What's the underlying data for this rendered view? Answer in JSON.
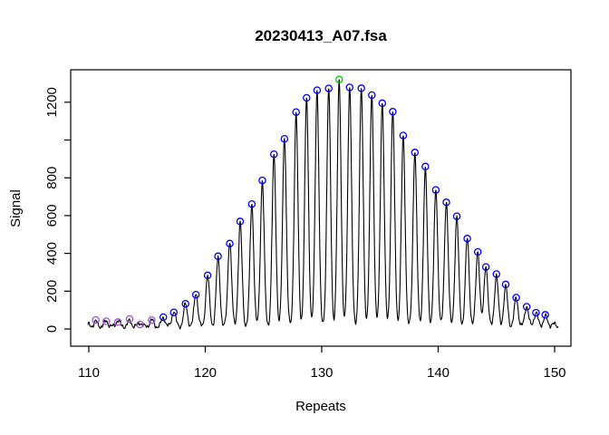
{
  "figure": {
    "background": "#FFFFFF"
  },
  "chart_data": {
    "type": "line",
    "title": "20230413_A07.fsa",
    "xlabel": "Repeats",
    "ylabel": "Signal",
    "grid": false,
    "legend": null,
    "x_axis": {
      "ticks": [
        110,
        120,
        130,
        140,
        150
      ],
      "range": [
        108.4,
        151.4
      ]
    },
    "y_axis": {
      "ticks": [
        {
          "value": 0,
          "label": "0"
        },
        {
          "value": 200,
          "label": "200"
        },
        {
          "value": 400,
          "label": "400"
        },
        {
          "value": 600,
          "label": "600"
        },
        {
          "value": 800,
          "label": "800"
        },
        {
          "value": 1000,
          "label": ""
        },
        {
          "value": 1200,
          "label": "1200"
        }
      ],
      "range": [
        -91,
        1372
      ]
    },
    "colors": {
      "trace": "#000000",
      "box": "#000000",
      "marker_blue": "#0000EE",
      "marker_purple": "#A050D8",
      "marker_green": "#00CC00"
    },
    "peaks": [
      {
        "repeat": 110.6,
        "signal": 38,
        "marker": "purple"
      },
      {
        "repeat": 111.5,
        "signal": 42,
        "marker": "purple"
      },
      {
        "repeat": 112.5,
        "signal": 46,
        "marker": "purple"
      },
      {
        "repeat": 113.5,
        "signal": 42,
        "marker": "purple"
      },
      {
        "repeat": 114.4,
        "signal": 33,
        "marker": "purple"
      },
      {
        "repeat": 115.4,
        "signal": 47,
        "marker": "purple"
      },
      {
        "repeat": 116.4,
        "signal": 60,
        "marker": "blue"
      },
      {
        "repeat": 117.3,
        "signal": 95,
        "marker": "blue"
      },
      {
        "repeat": 118.3,
        "signal": 131,
        "marker": "blue"
      },
      {
        "repeat": 119.2,
        "signal": 192,
        "marker": "blue"
      },
      {
        "repeat": 120.2,
        "signal": 281,
        "marker": "blue"
      },
      {
        "repeat": 121.1,
        "signal": 374,
        "marker": "blue"
      },
      {
        "repeat": 122.1,
        "signal": 465,
        "marker": "blue"
      },
      {
        "repeat": 123.0,
        "signal": 560,
        "marker": "blue"
      },
      {
        "repeat": 124.0,
        "signal": 661,
        "marker": "blue"
      },
      {
        "repeat": 124.9,
        "signal": 787,
        "marker": "blue"
      },
      {
        "repeat": 125.9,
        "signal": 916,
        "marker": "blue"
      },
      {
        "repeat": 126.8,
        "signal": 1018,
        "marker": "blue"
      },
      {
        "repeat": 127.8,
        "signal": 1137,
        "marker": "blue"
      },
      {
        "repeat": 128.7,
        "signal": 1221,
        "marker": "blue"
      },
      {
        "repeat": 129.6,
        "signal": 1266,
        "marker": "blue"
      },
      {
        "repeat": 130.6,
        "signal": 1270,
        "marker": "blue"
      },
      {
        "repeat": 131.5,
        "signal": 1314,
        "marker": "green"
      },
      {
        "repeat": 132.4,
        "signal": 1290,
        "marker": "blue"
      },
      {
        "repeat": 133.4,
        "signal": 1266,
        "marker": "blue"
      },
      {
        "repeat": 134.3,
        "signal": 1242,
        "marker": "blue"
      },
      {
        "repeat": 135.2,
        "signal": 1200,
        "marker": "blue"
      },
      {
        "repeat": 136.1,
        "signal": 1152,
        "marker": "blue"
      },
      {
        "repeat": 137.0,
        "signal": 1020,
        "marker": "blue"
      },
      {
        "repeat": 138.0,
        "signal": 941,
        "marker": "blue"
      },
      {
        "repeat": 138.9,
        "signal": 845,
        "marker": "blue"
      },
      {
        "repeat": 139.8,
        "signal": 737,
        "marker": "blue"
      },
      {
        "repeat": 140.7,
        "signal": 677,
        "marker": "blue"
      },
      {
        "repeat": 141.6,
        "signal": 592,
        "marker": "blue"
      },
      {
        "repeat": 142.5,
        "signal": 480,
        "marker": "blue"
      },
      {
        "repeat": 143.4,
        "signal": 413,
        "marker": "blue"
      },
      {
        "repeat": 144.1,
        "signal": 337,
        "marker": "blue"
      },
      {
        "repeat": 145.0,
        "signal": 282,
        "marker": "blue"
      },
      {
        "repeat": 145.8,
        "signal": 224,
        "marker": "blue"
      },
      {
        "repeat": 146.7,
        "signal": 167,
        "marker": "blue"
      },
      {
        "repeat": 147.6,
        "signal": 121,
        "marker": "blue"
      },
      {
        "repeat": 148.4,
        "signal": 89,
        "marker": "blue"
      },
      {
        "repeat": 149.2,
        "signal": 70,
        "marker": "blue"
      }
    ],
    "unmarked_bumps": [
      {
        "repeat": 109.95,
        "signal": 22
      },
      {
        "repeat": 149.85,
        "signal": 28
      }
    ]
  }
}
